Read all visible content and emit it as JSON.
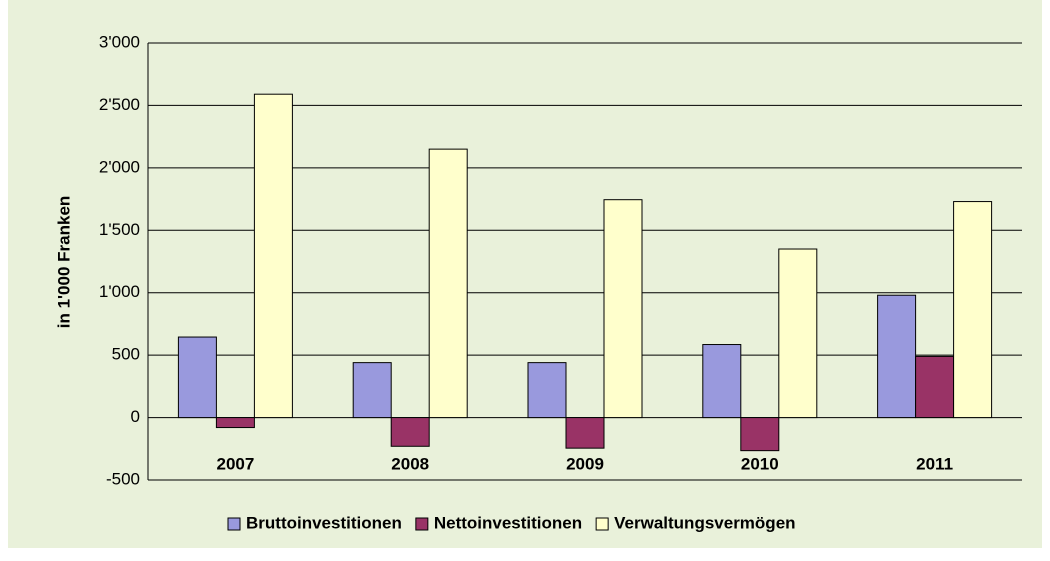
{
  "chart_data": {
    "type": "bar",
    "y_label": "in 1'000 Franken",
    "categories": [
      "2007",
      "2008",
      "2009",
      "2010",
      "2011"
    ],
    "series": [
      {
        "name": "Bruttoinvestitionen",
        "color": "#9999dd",
        "values": [
          645,
          440,
          440,
          585,
          980
        ]
      },
      {
        "name": "Nettoinvestitionen",
        "color": "#993366",
        "values": [
          -80,
          -230,
          -245,
          -265,
          490
        ]
      },
      {
        "name": "Verwaltungsvermögen",
        "color": "#ffffcc",
        "values": [
          2590,
          2150,
          1745,
          1350,
          1730
        ]
      }
    ],
    "ylim": [
      -500,
      3000
    ],
    "yticks": [
      -500,
      0,
      500,
      {
        "value": 1000,
        "label": "1'000"
      },
      {
        "value": 1500,
        "label": "1'500"
      },
      {
        "value": 2000,
        "label": "2'000"
      },
      {
        "value": 2500,
        "label": "2'500"
      },
      {
        "value": 3000,
        "label": "3'000"
      }
    ],
    "grid": true,
    "legend": "bottom"
  }
}
